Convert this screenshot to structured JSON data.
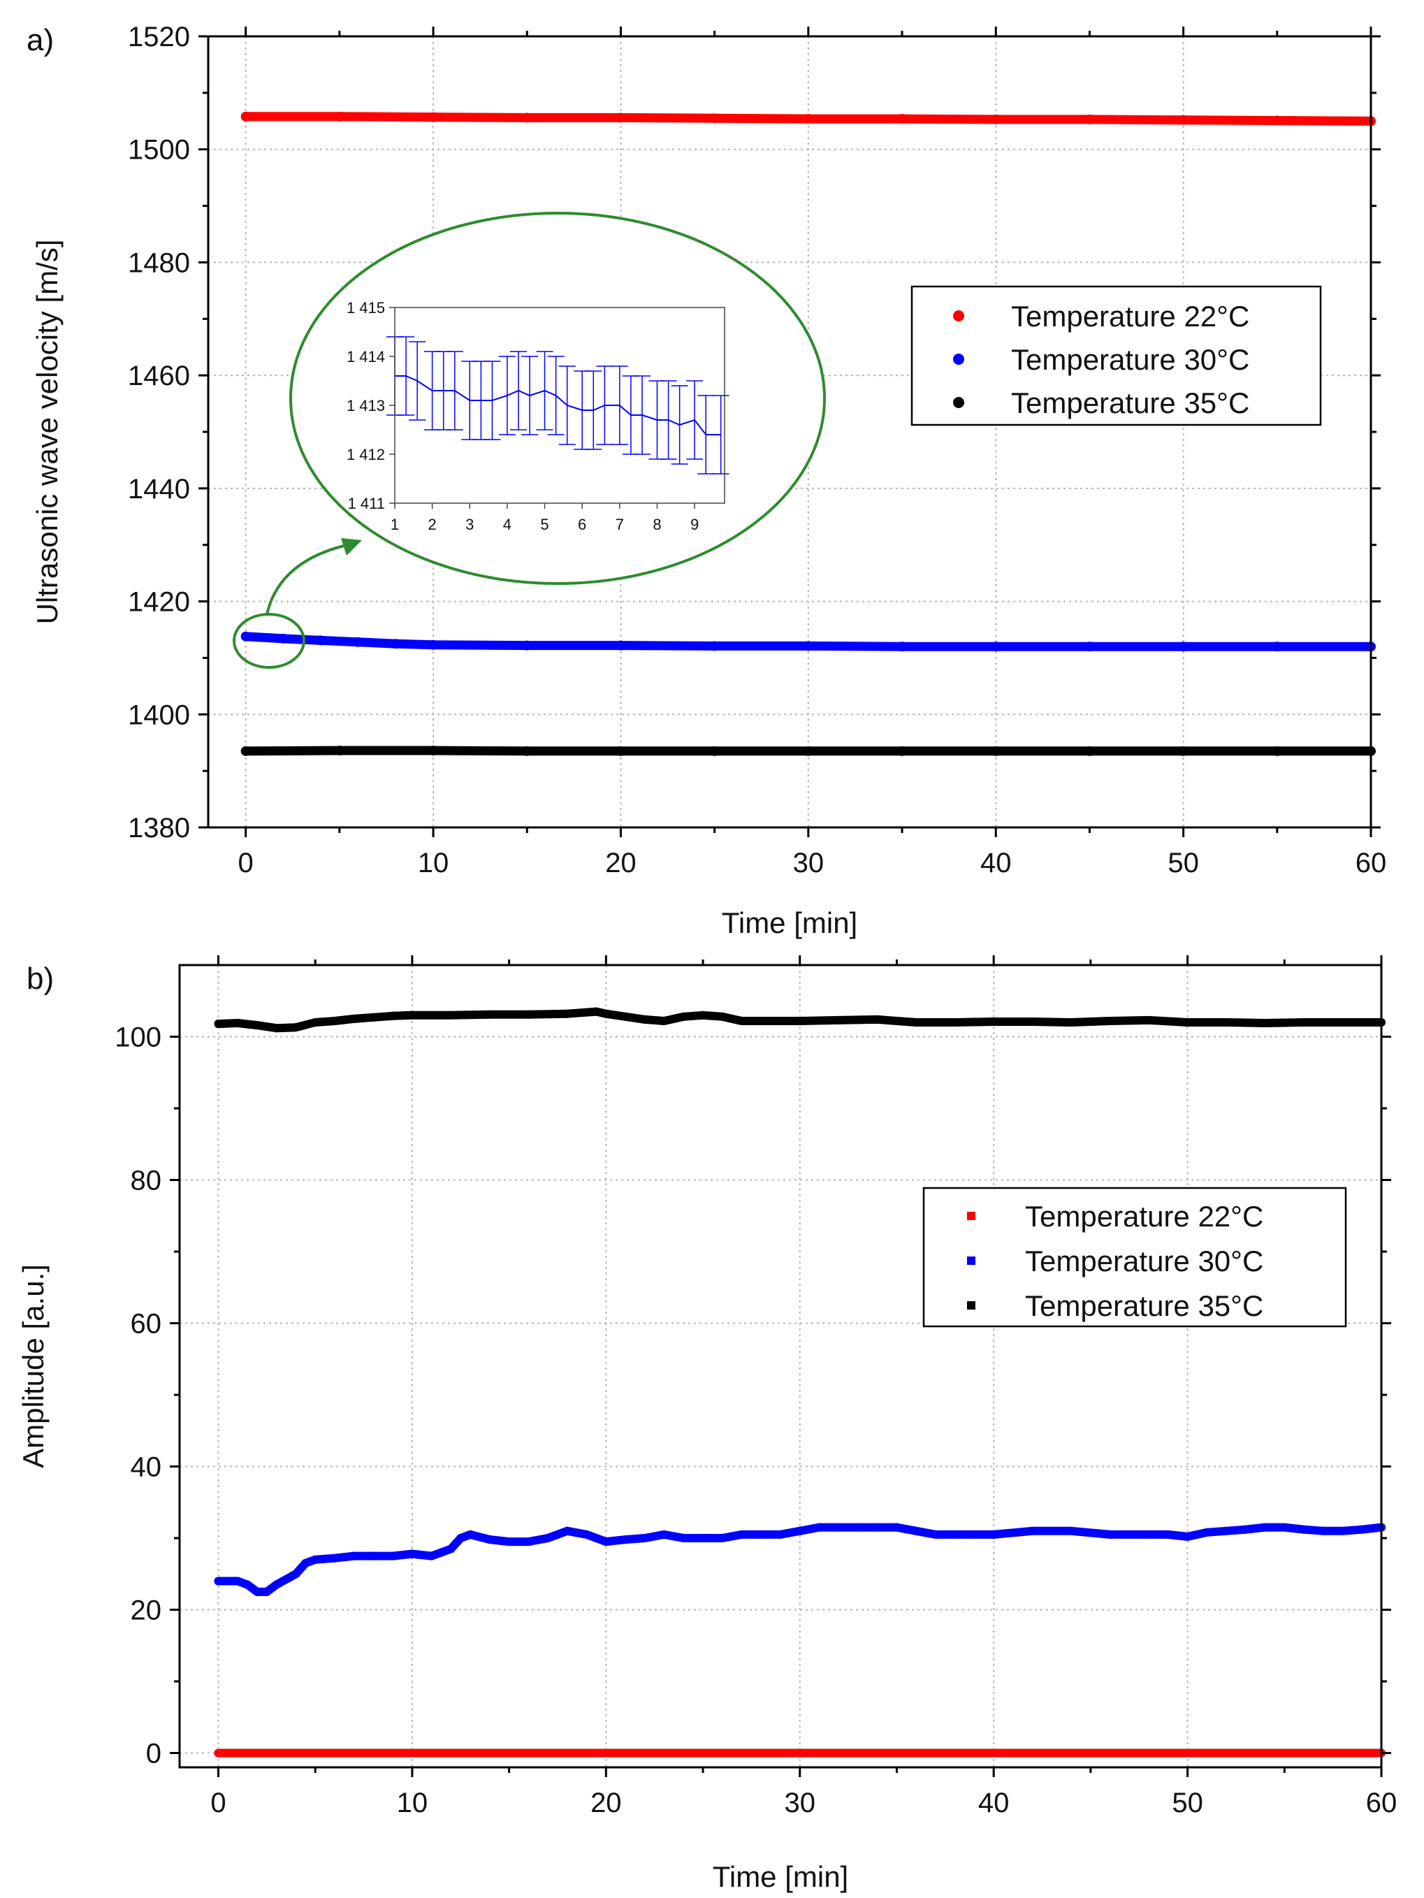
{
  "chart_data": [
    {
      "panel_label": "a)",
      "type": "scatter",
      "xlabel": "Time [min]",
      "ylabel": "Ultrasonic wave velocity [m/s]",
      "xlim": [
        -2,
        60
      ],
      "ylim": [
        1380,
        1520
      ],
      "xticks": [
        0,
        10,
        20,
        30,
        40,
        50,
        60
      ],
      "yticks": [
        1380,
        1400,
        1420,
        1440,
        1460,
        1480,
        1500,
        1520
      ],
      "grid": true,
      "legend_position": "center-right",
      "legend_marker": "circle",
      "series": [
        {
          "name": "Temperature 22°C",
          "color": "#ff0000",
          "x": [
            0,
            5,
            10,
            15,
            20,
            25,
            30,
            35,
            40,
            45,
            50,
            55,
            60
          ],
          "y": [
            1505.8,
            1505.8,
            1505.7,
            1505.6,
            1505.6,
            1505.5,
            1505.4,
            1505.4,
            1505.3,
            1505.3,
            1505.2,
            1505.1,
            1505.0
          ]
        },
        {
          "name": "Temperature 30°C",
          "color": "#0000ff",
          "x": [
            0,
            2,
            4,
            6,
            8,
            10,
            15,
            20,
            25,
            30,
            35,
            40,
            45,
            50,
            55,
            60
          ],
          "y": [
            1413.8,
            1413.4,
            1413.1,
            1412.8,
            1412.5,
            1412.3,
            1412.2,
            1412.2,
            1412.1,
            1412.1,
            1412.0,
            1412.0,
            1412.0,
            1412.0,
            1412.0,
            1412.0
          ]
        },
        {
          "name": "Temperature 35°C",
          "color": "#000000",
          "x": [
            0,
            5,
            10,
            15,
            20,
            25,
            30,
            35,
            40,
            45,
            50,
            55,
            60
          ],
          "y": [
            1393.5,
            1393.6,
            1393.6,
            1393.5,
            1393.5,
            1393.5,
            1393.5,
            1393.5,
            1393.5,
            1393.5,
            1393.5,
            1393.5,
            1393.5
          ]
        }
      ],
      "inset": {
        "type": "line_errorbar",
        "xlim": [
          1,
          9.8
        ],
        "ylim": [
          1411,
          1415
        ],
        "xticks": [
          1,
          2,
          3,
          4,
          5,
          6,
          7,
          8,
          9
        ],
        "yticks": [
          1411,
          1412,
          1413,
          1414,
          1415
        ],
        "ytick_labels": [
          "1 411",
          "1 412",
          "1 413",
          "1 414",
          "1 415"
        ],
        "color": "#0000ff",
        "error": 0.8,
        "x": [
          1.0,
          1.3,
          1.6,
          2.0,
          2.3,
          2.6,
          3.0,
          3.3,
          3.6,
          4.0,
          4.3,
          4.6,
          5.0,
          5.3,
          5.6,
          6.0,
          6.3,
          6.6,
          7.0,
          7.3,
          7.6,
          8.0,
          8.3,
          8.6,
          9.0,
          9.3,
          9.7
        ],
        "y": [
          1413.6,
          1413.6,
          1413.5,
          1413.3,
          1413.3,
          1413.3,
          1413.1,
          1413.1,
          1413.1,
          1413.2,
          1413.3,
          1413.2,
          1413.3,
          1413.2,
          1413.0,
          1412.9,
          1412.9,
          1413.0,
          1413.0,
          1412.8,
          1412.8,
          1412.7,
          1412.7,
          1412.6,
          1412.7,
          1412.4,
          1412.4
        ]
      }
    },
    {
      "panel_label": "b)",
      "type": "scatter",
      "xlabel": "Time [min]",
      "ylabel": "Amplitude [a.u.]",
      "xlim": [
        -2,
        60
      ],
      "ylim": [
        -2,
        110
      ],
      "xticks": [
        0,
        10,
        20,
        30,
        40,
        50,
        60
      ],
      "yticks": [
        0,
        20,
        40,
        60,
        80,
        100
      ],
      "grid": true,
      "legend_position": "center-right",
      "legend_marker": "square",
      "series": [
        {
          "name": "Temperature 22°C",
          "color": "#ff0000",
          "x": [
            0,
            10,
            20,
            30,
            40,
            50,
            60
          ],
          "y": [
            0,
            0,
            0,
            0,
            0,
            0,
            0
          ]
        },
        {
          "name": "Temperature 30°C",
          "color": "#0000ff",
          "x": [
            0,
            1,
            1.5,
            2,
            2.5,
            3,
            4,
            4.5,
            5,
            6,
            7,
            8,
            9,
            10,
            11,
            12,
            12.5,
            13,
            14,
            15,
            16,
            17,
            18,
            19,
            20,
            21,
            22,
            23,
            24,
            25,
            26,
            27,
            28,
            29,
            30,
            31,
            32,
            33,
            34,
            35,
            36,
            37,
            38,
            39,
            40,
            42,
            44,
            46,
            48,
            49,
            50,
            51,
            52,
            53,
            54,
            55,
            56,
            57,
            58,
            59,
            60
          ],
          "y": [
            24,
            24,
            23.5,
            22.5,
            22.5,
            23.5,
            25,
            26.5,
            27,
            27.2,
            27.5,
            27.5,
            27.5,
            27.8,
            27.5,
            28.5,
            30,
            30.5,
            29.8,
            29.5,
            29.5,
            30,
            31,
            30.5,
            29.5,
            29.8,
            30,
            30.5,
            30,
            30,
            30,
            30.5,
            30.5,
            30.5,
            31,
            31.5,
            31.5,
            31.5,
            31.5,
            31.5,
            31,
            30.5,
            30.5,
            30.5,
            30.5,
            31,
            31,
            30.5,
            30.5,
            30.5,
            30.2,
            30.8,
            31,
            31.2,
            31.5,
            31.5,
            31.2,
            31,
            31,
            31.2,
            31.5
          ]
        },
        {
          "name": "Temperature 35°C",
          "color": "#000000",
          "x": [
            0,
            1,
            2,
            3,
            4,
            5,
            6,
            7,
            8,
            9,
            10,
            12,
            14,
            16,
            18,
            19.5,
            20,
            21,
            22,
            23,
            24,
            25,
            26,
            27,
            28,
            30,
            32,
            34,
            36,
            38,
            40,
            42,
            44,
            46,
            48,
            50,
            52,
            54,
            56,
            58,
            60
          ],
          "y": [
            101.8,
            101.9,
            101.6,
            101.2,
            101.3,
            102,
            102.2,
            102.5,
            102.7,
            102.9,
            103,
            103,
            103.1,
            103.1,
            103.2,
            103.5,
            103.2,
            102.8,
            102.4,
            102.2,
            102.8,
            103,
            102.8,
            102.2,
            102.2,
            102.2,
            102.3,
            102.4,
            102,
            102,
            102.1,
            102.1,
            102,
            102.2,
            102.3,
            102,
            102,
            101.9,
            102,
            102,
            102
          ]
        }
      ]
    }
  ]
}
